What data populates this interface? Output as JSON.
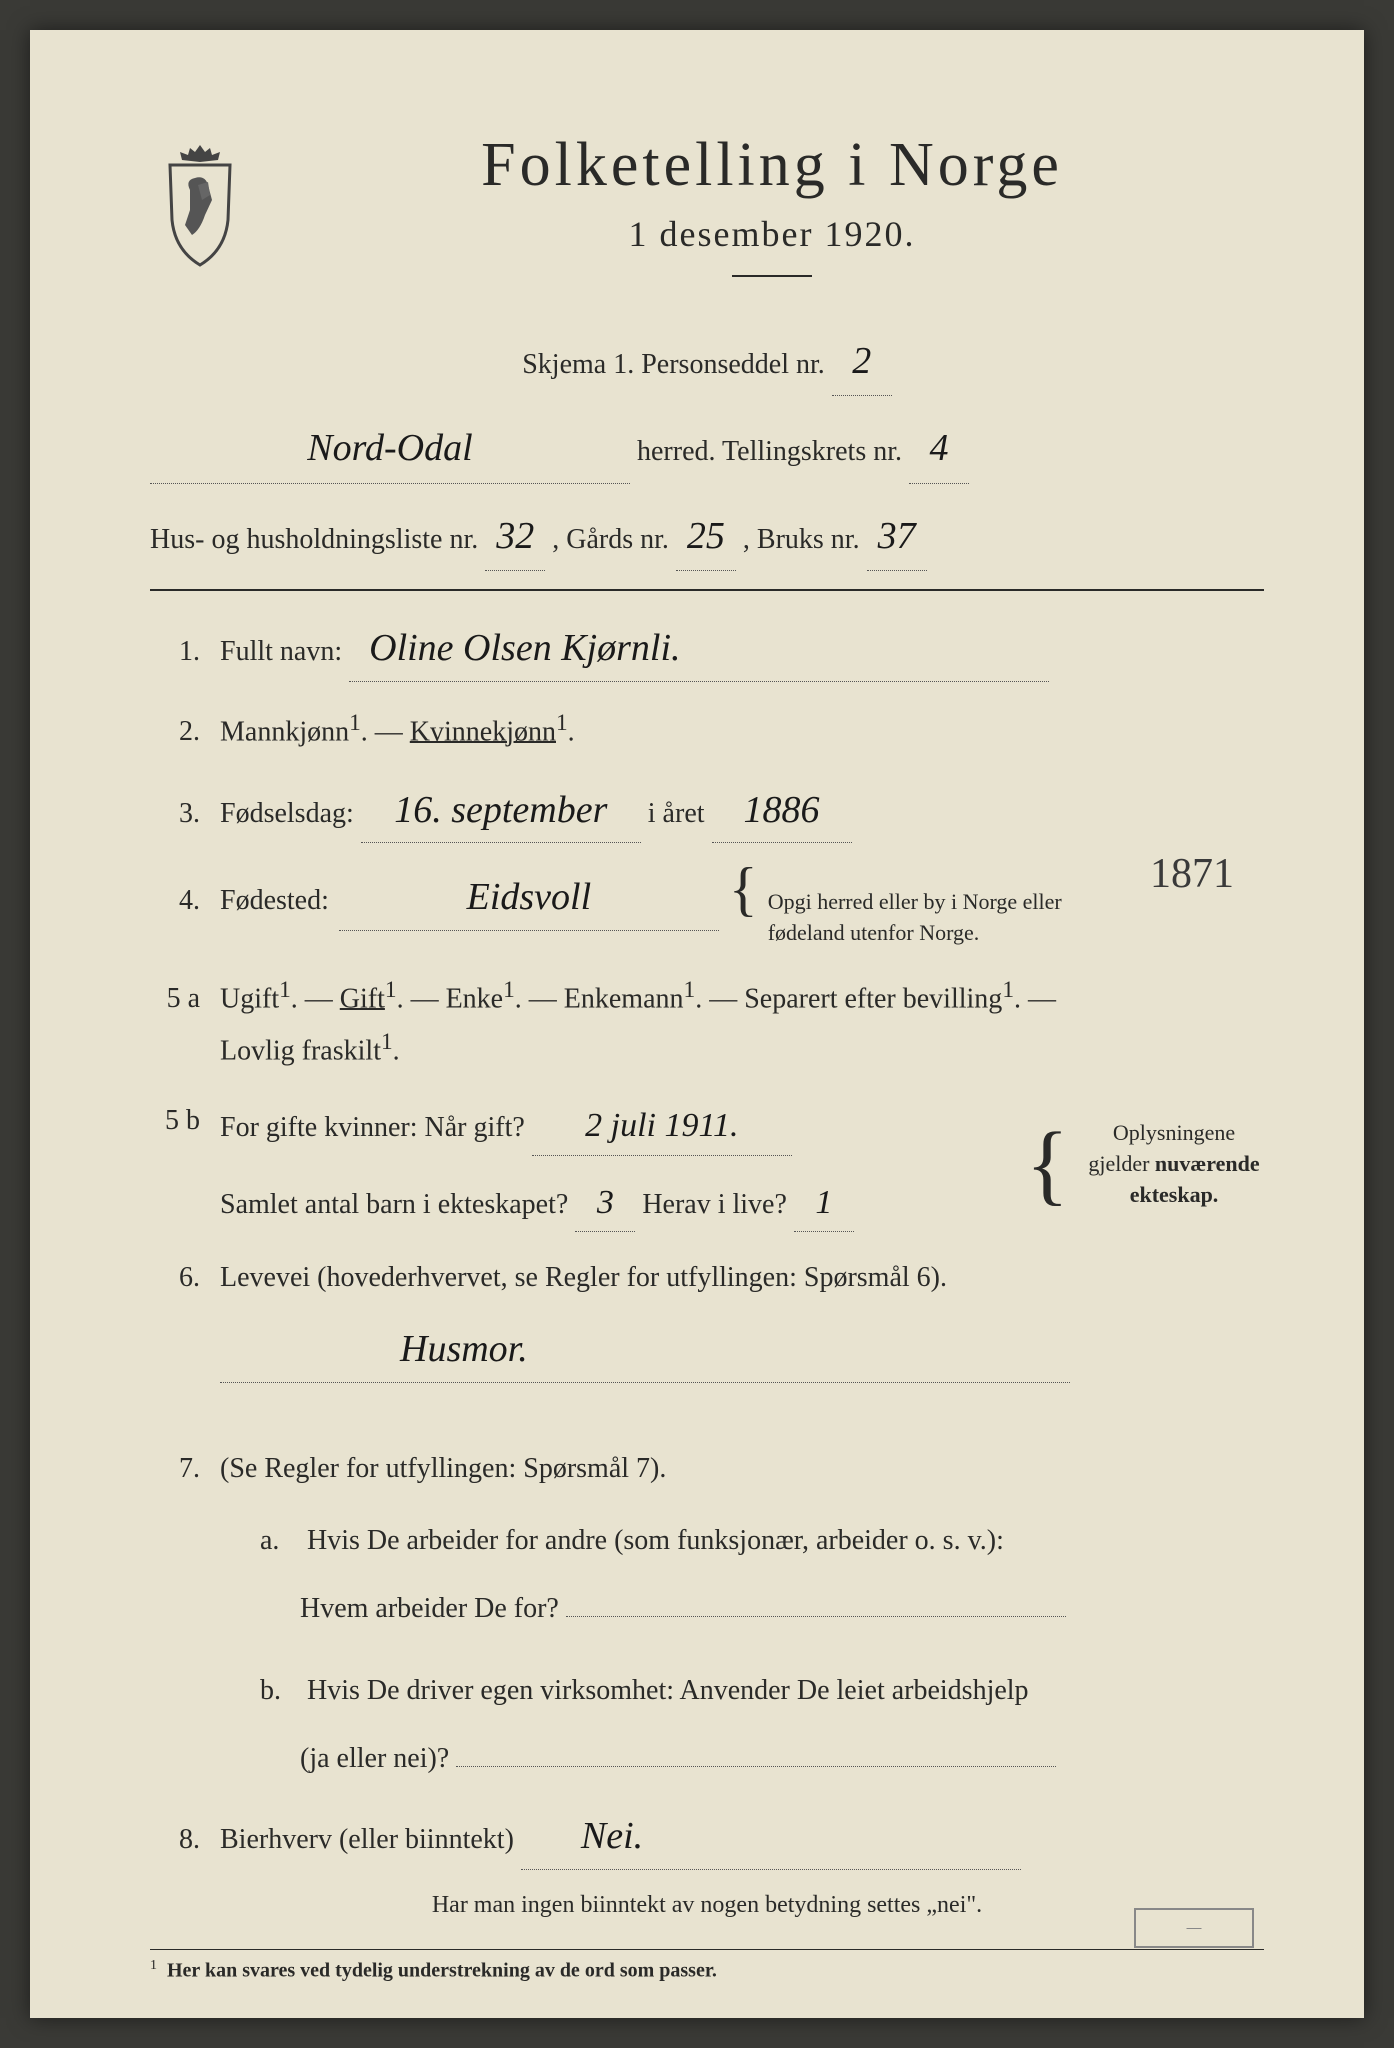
{
  "colors": {
    "page_bg": "#e8e3d0",
    "outer_bg": "#3a3a36",
    "text": "#2a2a28",
    "handwriting": "#1a1a1a",
    "rule": "#2a2a28",
    "dotted": "#555555"
  },
  "header": {
    "title": "Folketelling i Norge",
    "subtitle": "1 desember 1920."
  },
  "topform": {
    "skjema_label": "Skjema 1.   Personseddel nr.",
    "person_nr": "2",
    "herred_label": "herred.   Tellingskrets nr.",
    "herred_value": "Nord-Odal",
    "krets_nr": "4",
    "hus_label": "Hus- og husholdningsliste nr.",
    "hus_nr": "32",
    "gards_label": ",  Gårds nr.",
    "gards_nr": "25",
    "bruks_label": ",  Bruks nr.",
    "bruks_nr": "37"
  },
  "q1": {
    "num": "1.",
    "label": "Fullt navn:",
    "value": "Oline Olsen Kjørnli."
  },
  "q2": {
    "num": "2.",
    "label_m": "Mannkjønn",
    "sep": ". — ",
    "label_k": "Kvinnekjønn",
    "sup": "1",
    "period": "."
  },
  "q3": {
    "num": "3.",
    "label": "Fødselsdag:",
    "day": "16. september",
    "mid": "i året",
    "year": "1886"
  },
  "q4": {
    "num": "4.",
    "label": "Fødested:",
    "value": "Eidsvoll",
    "bracket": "Opgi herred eller by i Norge eller fødeland utenfor Norge."
  },
  "q5a": {
    "num": "5 a",
    "opts": [
      "Ugift",
      "Gift",
      "Enke",
      "Enkemann",
      "Separert efter bevilling",
      "Lovlig fraskilt"
    ],
    "sup": "1",
    "selected": 1
  },
  "q5b": {
    "num": "5 b",
    "l1": "For gifte kvinner:   Når gift?",
    "married": "2 juli 1911.",
    "l2": "Samlet antal barn i ekteskapet?",
    "children": "3",
    "l3": "Herav i live?",
    "alive": "1",
    "side": "Oplysningene gjelder ",
    "side_bold": "nuværende ekteskap."
  },
  "q6": {
    "num": "6.",
    "label": "Levevei (hovederhvervet, se Regler for utfyllingen:  Spørsmål 6).",
    "value": "Husmor."
  },
  "q7": {
    "num": "7.",
    "label": "(Se Regler for utfyllingen:  Spørsmål 7).",
    "a_label": "a.",
    "a_text1": "Hvis De arbeider for andre (som funksjonær, arbeider o. s. v.):",
    "a_text2": "Hvem arbeider De for?",
    "b_label": "b.",
    "b_text1": "Hvis De driver egen virksomhet:  Anvender De leiet arbeidshjelp",
    "b_text2": "(ja eller nei)?"
  },
  "q8": {
    "num": "8.",
    "label": "Bierhverv (eller biinntekt)",
    "value": "Nei."
  },
  "quote_note": "Har man ingen biinntekt av nogen betydning settes „nei\".",
  "footnote": {
    "sup": "1",
    "text": "Her kan svares ved tydelig understrekning av de ord som passer."
  },
  "margin_note": "1871"
}
